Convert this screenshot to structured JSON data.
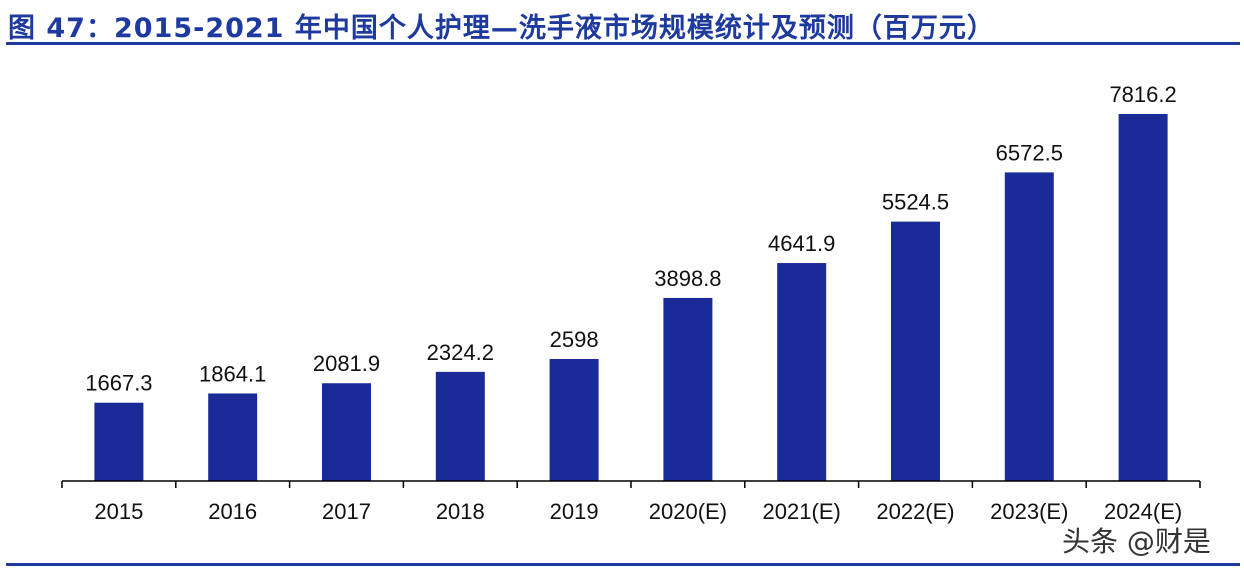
{
  "title": "图 47：2015-2021 年中国个人护理—洗手液市场规模统计及预测（百万元）",
  "watermark": "头条 @财是",
  "colors": {
    "bar": "#1a2b98",
    "title": "#1f3a9e",
    "axis": "#000000"
  },
  "chart_data": {
    "type": "bar",
    "title": "图 47：2015-2021 年中国个人护理—洗手液市场规模统计及预测（百万元）",
    "categories": [
      "2015",
      "2016",
      "2017",
      "2018",
      "2019",
      "2020(E)",
      "2021(E)",
      "2022(E)",
      "2023(E)",
      "2024(E)"
    ],
    "values": [
      1667.3,
      1864.1,
      2081.9,
      2324.2,
      2598,
      3898.8,
      4641.9,
      5524.5,
      6572.5,
      7816.2
    ],
    "data_labels": [
      "1667.3",
      "1864.1",
      "2081.9",
      "2324.2",
      "2598",
      "3898.8",
      "4641.9",
      "5524.5",
      "6572.5",
      "7816.2"
    ],
    "xlabel": "",
    "ylabel": "",
    "ylim": [
      0,
      7816.2
    ],
    "grid": false,
    "legend": "none"
  }
}
